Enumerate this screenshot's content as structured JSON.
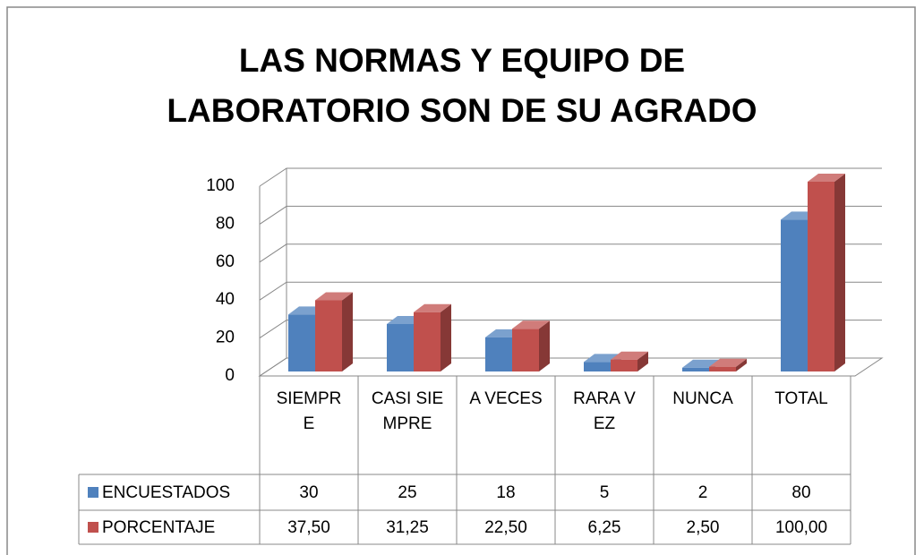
{
  "chart_data": {
    "type": "bar3d",
    "title": "LAS NORMAS Y EQUIPO DE LABORATORIO SON DE SU AGRADO",
    "categories": [
      "SIEMPRE",
      "CASI SIEMPRE",
      "A VECES",
      "RARA VEZ",
      "NUNCA",
      "TOTAL"
    ],
    "series": [
      {
        "name": "ENCUESTADOS",
        "color": "#4f81bd",
        "values": [
          30,
          25,
          18,
          5,
          2,
          80
        ]
      },
      {
        "name": "PORCENTAJE",
        "color": "#c0504d",
        "values": [
          37.5,
          31.25,
          22.5,
          6.25,
          2.5,
          100
        ],
        "value_labels": [
          "37,50",
          "31,25",
          "22,50",
          "6,25",
          "2,50",
          "100,00"
        ]
      }
    ],
    "ylim": [
      0,
      100
    ],
    "yticks": [
      0,
      20,
      40,
      60,
      80,
      100
    ],
    "grid": true
  }
}
